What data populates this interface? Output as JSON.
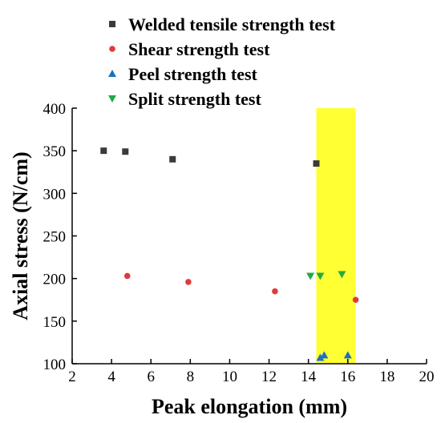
{
  "chart_data": {
    "type": "scatter",
    "title": "",
    "xlabel": "Peak elongation (mm)",
    "ylabel": "Axial stress (N/cm)",
    "xlim": [
      2,
      20
    ],
    "ylim": [
      100,
      400
    ],
    "xticks": [
      2,
      4,
      6,
      8,
      10,
      12,
      14,
      16,
      18,
      20
    ],
    "yticks": [
      100,
      150,
      200,
      250,
      300,
      350,
      400
    ],
    "grid": false,
    "legend_position": "top-left",
    "highlight_band": {
      "x_range": [
        14.4,
        16.4
      ],
      "color": "#ffff33"
    },
    "series": [
      {
        "name": "Welded tensile strength test",
        "marker": "square",
        "color": "#3a3a3a",
        "points": [
          [
            3.6,
            350
          ],
          [
            4.7,
            349
          ],
          [
            7.1,
            340
          ],
          [
            14.4,
            335
          ]
        ]
      },
      {
        "name": "Shear strength test",
        "marker": "circle",
        "color": "#e03a3a",
        "points": [
          [
            4.8,
            203
          ],
          [
            7.9,
            196
          ],
          [
            12.3,
            185
          ],
          [
            16.4,
            175
          ]
        ]
      },
      {
        "name": "Peel strength test",
        "marker": "triangle-up",
        "color": "#1f6fbf",
        "points": [
          [
            14.6,
            107
          ],
          [
            14.8,
            110
          ],
          [
            16.0,
            110
          ]
        ]
      },
      {
        "name": "Split strength test",
        "marker": "triangle-down",
        "color": "#22aa44",
        "points": [
          [
            14.1,
            203
          ],
          [
            14.6,
            203
          ],
          [
            15.7,
            205
          ]
        ]
      }
    ]
  }
}
